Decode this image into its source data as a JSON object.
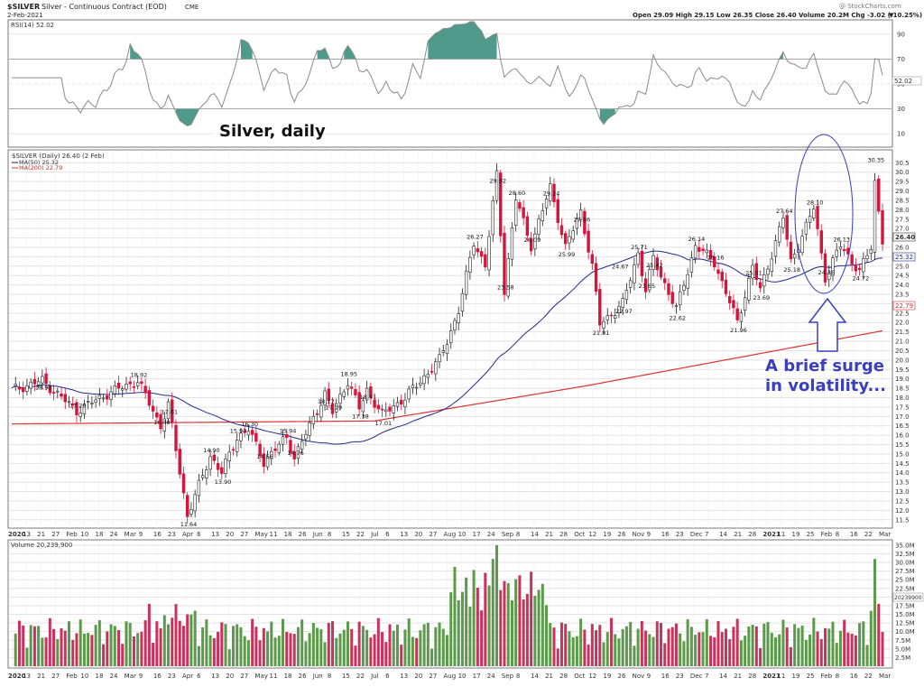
{
  "header": {
    "symbol": "$SILVER",
    "name": "Silver - Continuous Contract (EOD)",
    "exchange": "CME",
    "date": "2-Feb-2021",
    "ohlc": "Open 29.09  High 29.15  Low 26.35  Close 26.40  Volume 20.2M  Chg -3.02 (-10.25%)",
    "chg_arrow": "▼",
    "watermark": "@ StockCharts.com"
  },
  "rsi_panel": {
    "label": "RSI(14) 52.02",
    "ticks": [
      "90",
      "70",
      "50",
      "30",
      "10"
    ],
    "value_label": "52.02",
    "annotation": "Silver, daily"
  },
  "price_panel": {
    "label": "$SILVER (Daily) 26.40 (2 Feb)",
    "ma50_label": "MA(50) 25.32",
    "ma200_label": "MA(200) 22.79",
    "last_price": "26.40",
    "ma50_value": "25.32",
    "ma200_value": "22.79",
    "annotation_line1": "A brief surge",
    "annotation_line2": "in volatility..."
  },
  "volume_panel": {
    "label": "Volume 20,239,900",
    "ticks": [
      "35.0M",
      "32.5M",
      "30.0M",
      "27.5M",
      "25.0M",
      "22.5M",
      "20.0M",
      "17.5M",
      "15.0M",
      "12.5M",
      "10.0M",
      "7.5M",
      "5.0M",
      "2.5M"
    ],
    "value_label": "20239900"
  },
  "x_axis_labels": [
    "2020",
    "13",
    "21",
    "27",
    "Feb",
    "10",
    "18",
    "24",
    "Mar",
    "9",
    "16",
    "23",
    "Apr",
    "6",
    "13",
    "20",
    "27",
    "May",
    "11",
    "18",
    "26",
    "Jun",
    "8",
    "15",
    "22",
    "Jul",
    "6",
    "13",
    "20",
    "27",
    "Aug",
    "10",
    "17",
    "24",
    "Sep",
    "8",
    "14",
    "21",
    "28",
    "Oct",
    "12",
    "19",
    "26",
    "Nov",
    "9",
    "16",
    "23",
    "Dec",
    "7",
    "14",
    "21",
    "28",
    "2021",
    "11",
    "19",
    "25",
    "Feb",
    "8",
    "16",
    "22",
    "Mar"
  ],
  "colors": {
    "up": "#4e8f3a",
    "down": "#d4143c",
    "ma50": "#1e2a8c",
    "ma200": "#e03030",
    "rsi": "#8a8a8a",
    "rsi_fill": "#4f9a8a",
    "annotation": "#3a3ec0",
    "volume_up": "#5a9a4a",
    "volume_down": "#c8335e"
  },
  "chart_data": {
    "type": "candlestick",
    "price_ticks": [
      "30.5",
      "30.0",
      "29.5",
      "29.0",
      "28.5",
      "28.0",
      "27.5",
      "27.0",
      "26.5",
      "26.0",
      "25.5",
      "25.0",
      "24.5",
      "24.0",
      "23.5",
      "23.0",
      "22.5",
      "22.0",
      "21.5",
      "21.0",
      "20.5",
      "20.0",
      "19.5",
      "19.0",
      "18.5",
      "18.0",
      "17.5",
      "17.0",
      "16.5",
      "16.0",
      "15.5",
      "15.0",
      "14.5",
      "14.0",
      "13.5",
      "13.0",
      "12.5",
      "12.0",
      "11.5"
    ],
    "ylim": [
      11.2,
      30.9
    ],
    "price_labels": [
      {
        "text": "18.90",
        "idx": 8
      },
      {
        "text": "17.28",
        "idx": 17
      },
      {
        "text": "18.92",
        "idx": 33
      },
      {
        "text": "17.61",
        "idx": 41
      },
      {
        "text": "16.40",
        "idx": 39
      },
      {
        "text": "11.64",
        "idx": 46
      },
      {
        "text": "14.90",
        "idx": 52
      },
      {
        "text": "13.90",
        "idx": 55
      },
      {
        "text": "15.93",
        "idx": 59
      },
      {
        "text": "16.30",
        "idx": 62
      },
      {
        "text": "14.56",
        "idx": 66
      },
      {
        "text": "15.94",
        "idx": 72
      },
      {
        "text": "14.76",
        "idx": 74
      },
      {
        "text": "18.17",
        "idx": 82
      },
      {
        "text": "17.19",
        "idx": 84
      },
      {
        "text": "18.95",
        "idx": 88
      },
      {
        "text": "17.38",
        "idx": 91
      },
      {
        "text": "18.41",
        "idx": 93
      },
      {
        "text": "17.01",
        "idx": 97
      },
      {
        "text": "26.27",
        "idx": 121
      },
      {
        "text": "29.92",
        "idx": 127
      },
      {
        "text": "23.58",
        "idx": 129
      },
      {
        "text": "28.60",
        "idx": 132
      },
      {
        "text": "26.09",
        "idx": 136
      },
      {
        "text": "29.24",
        "idx": 141
      },
      {
        "text": "25.99",
        "idx": 145
      },
      {
        "text": "27.86",
        "idx": 149
      },
      {
        "text": "21.81",
        "idx": 154
      },
      {
        "text": "22.97",
        "idx": 160
      },
      {
        "text": "24.67",
        "idx": 159
      },
      {
        "text": "25.71",
        "idx": 164
      },
      {
        "text": "23.65",
        "idx": 166
      },
      {
        "text": "25.42",
        "idx": 168
      },
      {
        "text": "22.62",
        "idx": 174
      },
      {
        "text": "26.14",
        "idx": 179
      },
      {
        "text": "25.16",
        "idx": 184
      },
      {
        "text": "21.96",
        "idx": 190
      },
      {
        "text": "23.69",
        "idx": 196
      },
      {
        "text": "25.01",
        "idx": 194
      },
      {
        "text": "27.64",
        "idx": 202
      },
      {
        "text": "25.18",
        "idx": 204
      },
      {
        "text": "28.10",
        "idx": 210
      },
      {
        "text": "24.36",
        "idx": 213
      },
      {
        "text": "26.13",
        "idx": 217
      },
      {
        "text": "24.72",
        "idx": 222
      },
      {
        "text": "30.35",
        "idx": 226
      }
    ],
    "volume_max_m": 36,
    "rsi_range": [
      0,
      100
    ]
  }
}
